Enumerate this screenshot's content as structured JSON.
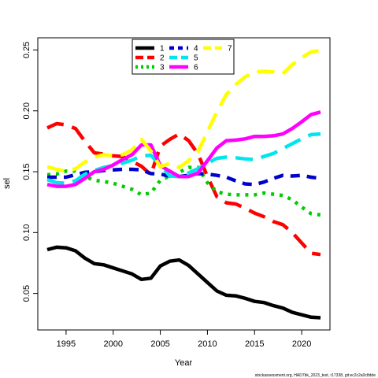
{
  "chart_data": {
    "type": "line",
    "xlabel": "Year",
    "ylabel": "sel",
    "xlim": [
      1992,
      2023
    ],
    "ylim": [
      0.02,
      0.26
    ],
    "x_ticks": [
      1995,
      2000,
      2005,
      2010,
      2015,
      2020
    ],
    "y_ticks": [
      0.05,
      0.1,
      0.15,
      0.2,
      0.25
    ],
    "y_tick_labels": [
      "0.05",
      "0.10",
      "0.15",
      "0.20",
      "0.25"
    ],
    "grid": false,
    "legend_position": "top-center",
    "footnote": "stockassessment.org, HAD7bk_2023_test, r17338, git:ec2c2a0c8dde",
    "x": [
      1993,
      1994,
      1995,
      1996,
      1997,
      1998,
      1999,
      2000,
      2001,
      2002,
      2003,
      2004,
      2005,
      2006,
      2007,
      2008,
      2009,
      2010,
      2011,
      2012,
      2013,
      2014,
      2015,
      2016,
      2017,
      2018,
      2019,
      2020,
      2021,
      2022
    ],
    "series": [
      {
        "name": "1",
        "color": "#000000",
        "dash": "solid",
        "values": [
          0.086,
          0.088,
          0.0875,
          0.085,
          0.079,
          0.0745,
          0.0735,
          0.071,
          0.0685,
          0.066,
          0.0615,
          0.0625,
          0.0725,
          0.0765,
          0.0775,
          0.073,
          0.066,
          0.059,
          0.052,
          0.0485,
          0.048,
          0.046,
          0.0435,
          0.0425,
          0.04,
          0.038,
          0.0345,
          0.0325,
          0.0305,
          0.03
        ]
      },
      {
        "name": "2",
        "color": "#ff0000",
        "dash": "long",
        "values": [
          0.186,
          0.1895,
          0.1885,
          0.1855,
          0.175,
          0.1655,
          0.1645,
          0.163,
          0.1625,
          0.1585,
          0.1545,
          0.1475,
          0.171,
          0.1765,
          0.181,
          0.1755,
          0.1645,
          0.146,
          0.1295,
          0.1245,
          0.1235,
          0.12,
          0.116,
          0.113,
          0.109,
          0.1065,
          0.1,
          0.0915,
          0.083,
          0.082
        ]
      },
      {
        "name": "3",
        "color": "#00cd00",
        "dash": "dot",
        "values": [
          0.1475,
          0.148,
          0.1505,
          0.1505,
          0.146,
          0.143,
          0.142,
          0.1405,
          0.138,
          0.1355,
          0.131,
          0.1325,
          0.143,
          0.1465,
          0.1495,
          0.1535,
          0.1535,
          0.141,
          0.1335,
          0.1315,
          0.131,
          0.131,
          0.131,
          0.1325,
          0.1315,
          0.1305,
          0.127,
          0.121,
          0.1155,
          0.1145
        ]
      },
      {
        "name": "4",
        "color": "#0000cd",
        "dash": "dash",
        "values": [
          0.1455,
          0.1455,
          0.1455,
          0.1475,
          0.1495,
          0.15,
          0.151,
          0.1515,
          0.152,
          0.152,
          0.1515,
          0.1485,
          0.148,
          0.1465,
          0.146,
          0.147,
          0.1485,
          0.148,
          0.147,
          0.1455,
          0.1425,
          0.14,
          0.1395,
          0.1415,
          0.1445,
          0.147,
          0.1465,
          0.147,
          0.1455,
          0.1445
        ]
      },
      {
        "name": "5",
        "color": "#00e5ee",
        "dash": "long",
        "values": [
          0.1435,
          0.141,
          0.1405,
          0.1425,
          0.148,
          0.151,
          0.1535,
          0.155,
          0.157,
          0.1595,
          0.163,
          0.1635,
          0.1555,
          0.1465,
          0.146,
          0.149,
          0.1525,
          0.157,
          0.161,
          0.162,
          0.1615,
          0.1605,
          0.16,
          0.1625,
          0.165,
          0.169,
          0.173,
          0.177,
          0.1805,
          0.181
        ]
      },
      {
        "name": "6",
        "color": "#ff00ff",
        "dash": "solid",
        "values": [
          0.1395,
          0.138,
          0.138,
          0.1395,
          0.1445,
          0.15,
          0.152,
          0.1555,
          0.16,
          0.164,
          0.172,
          0.172,
          0.155,
          0.1505,
          0.146,
          0.146,
          0.149,
          0.159,
          0.1695,
          0.1755,
          0.176,
          0.177,
          0.179,
          0.179,
          0.1795,
          0.181,
          0.1855,
          0.191,
          0.197,
          0.199
        ]
      },
      {
        "name": "7",
        "color": "#ffff00",
        "dash": "long",
        "values": [
          0.154,
          0.152,
          0.1505,
          0.1525,
          0.158,
          0.162,
          0.164,
          0.163,
          0.164,
          0.168,
          0.1765,
          0.167,
          0.154,
          0.157,
          0.1535,
          0.159,
          0.1665,
          0.183,
          0.199,
          0.2135,
          0.2215,
          0.228,
          0.232,
          0.2325,
          0.232,
          0.2305,
          0.238,
          0.2435,
          0.2485,
          0.2495
        ]
      }
    ]
  }
}
